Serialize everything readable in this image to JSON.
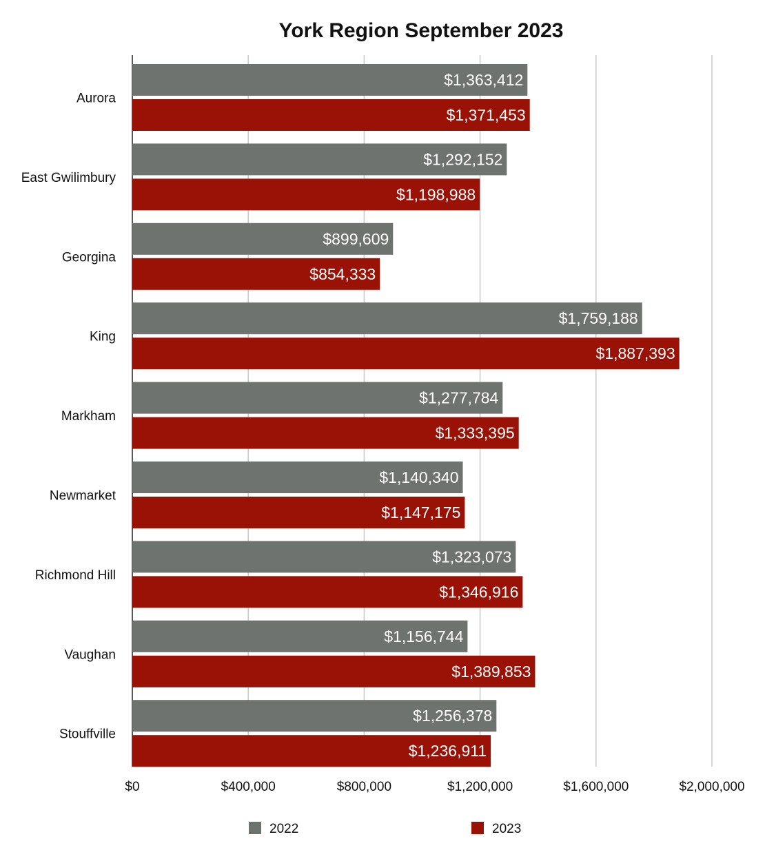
{
  "chart_data": {
    "type": "bar",
    "orientation": "horizontal",
    "title": "York Region September 2023",
    "categories": [
      "Aurora",
      "East Gwilimbury",
      "Georgina",
      "King",
      "Markham",
      "Newmarket",
      "Richmond Hill",
      "Vaughan",
      "Stouffville"
    ],
    "series": [
      {
        "name": "2022",
        "color": "#6f7370",
        "values": [
          1363412,
          1292152,
          899609,
          1759188,
          1277784,
          1140340,
          1323073,
          1156744,
          1256378
        ],
        "labels": [
          "$1,363,412",
          "$1,292,152",
          "$899,609",
          "$1,759,188",
          "$1,277,784",
          "$1,140,340",
          "$1,323,073",
          "$1,156,744",
          "$1,256,378"
        ]
      },
      {
        "name": "2023",
        "color": "#9a1206",
        "values": [
          1371453,
          1198988,
          854333,
          1887393,
          1333395,
          1147175,
          1346916,
          1389853,
          1236911
        ],
        "labels": [
          "$1,371,453",
          "$1,198,988",
          "$854,333",
          "$1,887,393",
          "$1,333,395",
          "$1,147,175",
          "$1,346,916",
          "$1,389,853",
          "$1,236,911"
        ]
      }
    ],
    "xlim": [
      0,
      2000000
    ],
    "xticks": [
      0,
      400000,
      800000,
      1200000,
      1600000,
      2000000
    ],
    "xtick_labels": [
      "$0",
      "$400,000",
      "$800,000",
      "$1,200,000",
      "$1,600,000",
      "$2,000,000"
    ],
    "grid": true,
    "legend_position": "bottom"
  }
}
